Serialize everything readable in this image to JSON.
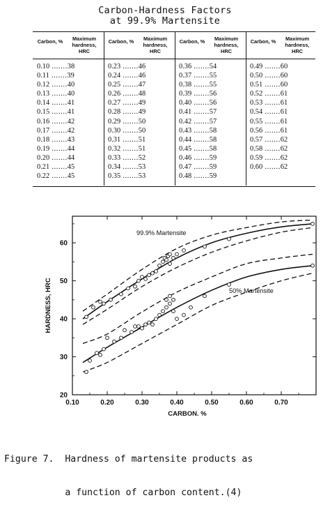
{
  "table": {
    "title_line1": "Carbon-Hardness Factors",
    "title_line2": "at 99.9% Martensite",
    "header_carbon": "Carbon, %",
    "header_hardness": "Maximum hardness, HRC",
    "columns": [
      [
        [
          "0.10",
          "38"
        ],
        [
          "0.11",
          "39"
        ],
        [
          "0.12",
          "40"
        ],
        [
          "0.13",
          "40"
        ],
        [
          "0.14",
          "41"
        ],
        [
          "0.15",
          "41"
        ],
        [
          "0.16",
          "42"
        ],
        [
          "0.17",
          "42"
        ],
        [
          "0.18",
          "43"
        ],
        [
          "0.19",
          "44"
        ],
        [
          "0.20",
          "44"
        ],
        [
          "0.21",
          "45"
        ],
        [
          "0.22",
          "45"
        ]
      ],
      [
        [
          "0.23",
          "46"
        ],
        [
          "0.24",
          "46"
        ],
        [
          "0.25",
          "47"
        ],
        [
          "0.26",
          "48"
        ],
        [
          "0.27",
          "49"
        ],
        [
          "0.28",
          "49"
        ],
        [
          "0.29",
          "50"
        ],
        [
          "0.30",
          "50"
        ],
        [
          "0.31",
          "51"
        ],
        [
          "0.32",
          "51"
        ],
        [
          "0.33",
          "52"
        ],
        [
          "0.34",
          "53"
        ],
        [
          "0.35",
          "53"
        ]
      ],
      [
        [
          "0.36",
          "54"
        ],
        [
          "0.37",
          "55"
        ],
        [
          "0.38",
          "55"
        ],
        [
          "0.39",
          "56"
        ],
        [
          "0.40",
          "56"
        ],
        [
          "0.41",
          "57"
        ],
        [
          "0.42",
          "57"
        ],
        [
          "0.43",
          "58"
        ],
        [
          "0.44",
          "58"
        ],
        [
          "0.45",
          "58"
        ],
        [
          "0.46",
          "59"
        ],
        [
          "0.47",
          "59"
        ],
        [
          "0.48",
          "59"
        ]
      ],
      [
        [
          "0.49",
          "60"
        ],
        [
          "0.50",
          "60"
        ],
        [
          "0.51",
          "60"
        ],
        [
          "0.52",
          "61"
        ],
        [
          "0.53",
          "61"
        ],
        [
          "0.54",
          "61"
        ],
        [
          "0.55",
          "61"
        ],
        [
          "0.56",
          "61"
        ],
        [
          "0.57",
          "62"
        ],
        [
          "0.58",
          "62"
        ],
        [
          "0.59",
          "62"
        ],
        [
          "0.60",
          "62"
        ]
      ]
    ]
  },
  "chart_data": {
    "type": "scatter",
    "xlabel": "CARBON, %",
    "ylabel": "HARDNESS, HRC",
    "xlim": [
      0.1,
      0.8
    ],
    "ylim": [
      20,
      67
    ],
    "xticks": [
      "0.10",
      "0.20",
      "0.30",
      "0.40",
      "0.50",
      "0.60",
      "0.70"
    ],
    "yticks": [
      "20",
      "30",
      "40",
      "50",
      "60"
    ],
    "grid": false,
    "annotations": [
      "99.9% Martensite",
      "50% Martensite"
    ],
    "series": [
      {
        "name": "99.9% Martensite",
        "curve_x": [
          0.13,
          0.2,
          0.3,
          0.4,
          0.5,
          0.6,
          0.7,
          0.79
        ],
        "curve_y": [
          40,
          44.5,
          50.5,
          56,
          60,
          62.5,
          64.2,
          65
        ],
        "band_upper_y": [
          42,
          46.5,
          53,
          58.5,
          62,
          64,
          65.5,
          66
        ],
        "band_lower_y": [
          38.5,
          42.5,
          48.5,
          53.5,
          57.5,
          60.5,
          62.8,
          64
        ],
        "points_x": [
          0.14,
          0.16,
          0.18,
          0.19,
          0.21,
          0.24,
          0.26,
          0.28,
          0.29,
          0.3,
          0.31,
          0.32,
          0.33,
          0.34,
          0.35,
          0.36,
          0.365,
          0.37,
          0.375,
          0.38,
          0.38,
          0.39,
          0.4,
          0.42,
          0.48,
          0.55,
          0.79
        ],
        "points_y": [
          40.5,
          43,
          44.5,
          44,
          45,
          46.5,
          48,
          48.5,
          50,
          51,
          50.5,
          51.5,
          52,
          52.5,
          54,
          55,
          56,
          55.5,
          56.5,
          54.5,
          57,
          56,
          57,
          58,
          59,
          61,
          65
        ]
      },
      {
        "name": "50% Martensite",
        "curve_x": [
          0.13,
          0.2,
          0.3,
          0.4,
          0.5,
          0.6,
          0.7,
          0.79
        ],
        "curve_y": [
          28.5,
          32.5,
          37.8,
          43,
          47.5,
          51,
          53,
          54
        ],
        "band_upper_y": [
          33.5,
          36,
          41.8,
          47,
          51,
          54.5,
          56,
          57
        ],
        "band_lower_y": [
          26,
          28.5,
          33.5,
          38.5,
          43.5,
          47,
          50,
          52
        ],
        "points_x": [
          0.14,
          0.15,
          0.17,
          0.18,
          0.19,
          0.2,
          0.22,
          0.24,
          0.25,
          0.27,
          0.28,
          0.29,
          0.3,
          0.31,
          0.32,
          0.33,
          0.34,
          0.35,
          0.36,
          0.37,
          0.37,
          0.38,
          0.38,
          0.39,
          0.39,
          0.4,
          0.42,
          0.44,
          0.48,
          0.55,
          0.79
        ],
        "points_y": [
          26,
          29,
          31,
          30.5,
          32,
          35,
          34,
          35,
          37,
          36.5,
          38,
          38,
          37.5,
          38.5,
          39,
          38.5,
          40,
          41,
          42,
          43,
          45,
          44,
          46,
          42,
          45,
          40,
          41,
          43,
          46,
          49,
          54
        ]
      }
    ]
  },
  "caption": {
    "line1": "Figure 7.  Hardness of martensite products as",
    "line2": "           a function of carbon content.(4)"
  }
}
